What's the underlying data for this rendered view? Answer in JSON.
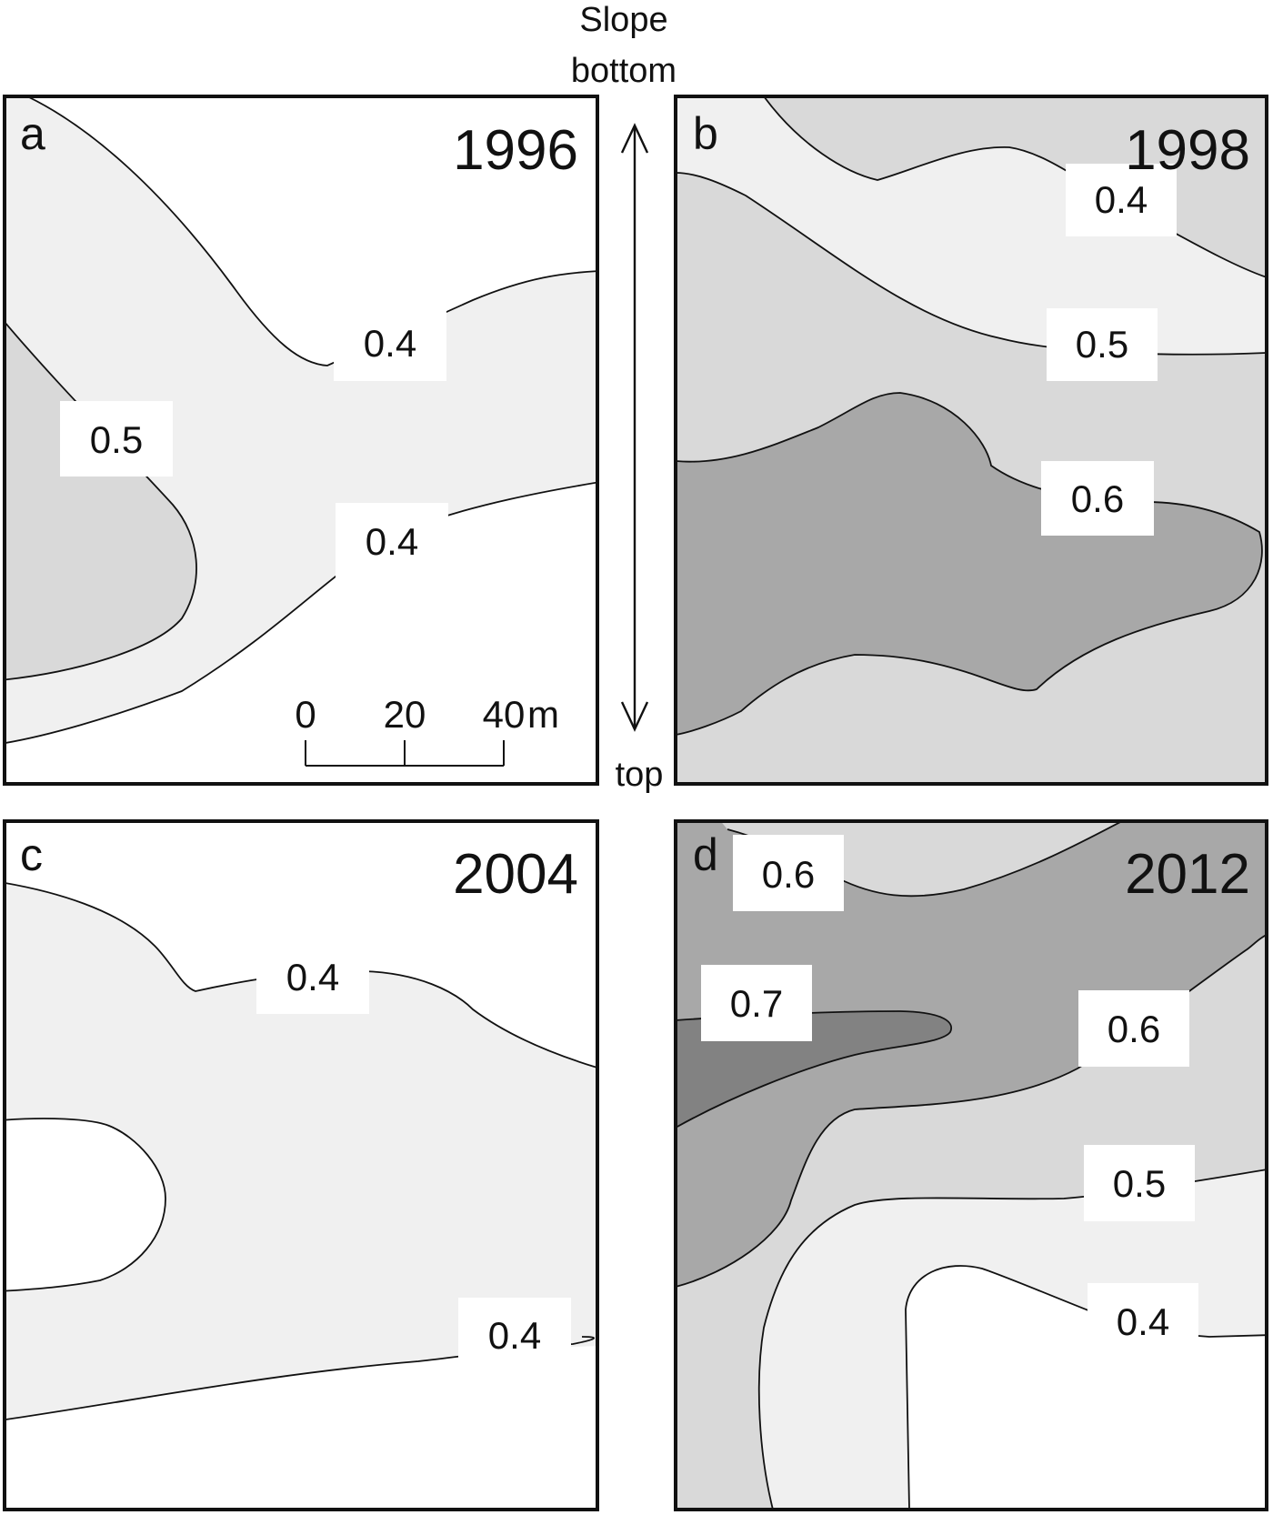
{
  "figure": {
    "orientation": {
      "top_label_line1": "Slope",
      "top_label_line2": "bottom",
      "bottom_label": "top"
    },
    "scale_bar": {
      "ticks": [
        "0",
        "20",
        "40"
      ],
      "unit": "m"
    },
    "colors": {
      "level_lt_0.4": "#ffffff",
      "level_0.4_0.5": "#f0f0f0",
      "level_0.5_0.6": "#d9d9d9",
      "level_0.6_0.7": "#a8a8a8",
      "level_gt_0.7": "#828282"
    },
    "panels": [
      {
        "letter": "a",
        "year": "1996",
        "contour_labels": [
          "0.4",
          "0.5",
          "0.4"
        ]
      },
      {
        "letter": "b",
        "year": "1998",
        "contour_labels": [
          "0.4",
          "0.5",
          "0.6"
        ]
      },
      {
        "letter": "c",
        "year": "2004",
        "contour_labels": [
          "0.4",
          "0.4"
        ]
      },
      {
        "letter": "d",
        "year": "2012",
        "contour_labels": [
          "0.6",
          "0.7",
          "0.6",
          "0.5",
          "0.4"
        ]
      }
    ]
  }
}
